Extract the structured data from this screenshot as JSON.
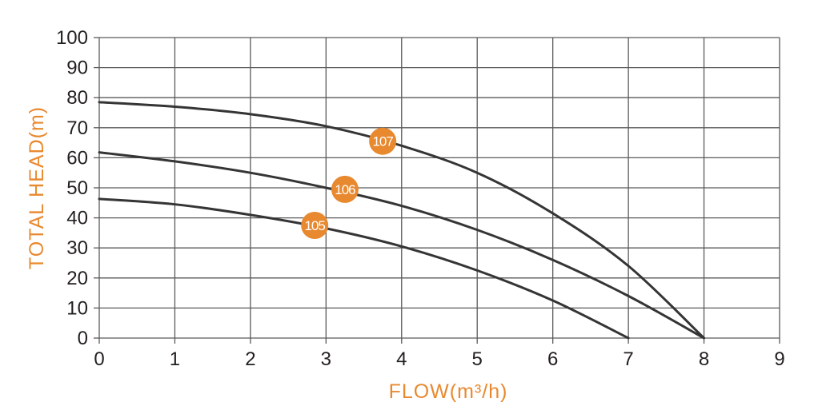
{
  "chart_data": {
    "type": "line",
    "xlabel": "FLOW(m³/h)",
    "ylabel": "TOTAL HEAD(m)",
    "xlim": [
      0,
      9
    ],
    "ylim": [
      0,
      100
    ],
    "x_ticks": [
      "0",
      "1",
      "2",
      "3",
      "4",
      "5",
      "6",
      "7",
      "8",
      "9"
    ],
    "y_ticks": [
      "0",
      "10",
      "20",
      "30",
      "40",
      "50",
      "60",
      "70",
      "80",
      "90",
      "100"
    ],
    "grid": true,
    "legend": "none",
    "series": [
      {
        "name": "107",
        "x": [
          0,
          1,
          2,
          3,
          4,
          5,
          6,
          7,
          8
        ],
        "values": [
          78.5,
          77,
          74.5,
          70.5,
          64,
          55,
          41.5,
          24,
          0
        ],
        "label_at": [
          3.75,
          65.5
        ]
      },
      {
        "name": "106",
        "x": [
          0,
          1,
          2,
          3,
          4,
          5,
          6,
          7,
          8
        ],
        "values": [
          61.8,
          58.8,
          55,
          50,
          44,
          36,
          26,
          14,
          0
        ],
        "label_at": [
          3.25,
          49.5
        ]
      },
      {
        "name": "105",
        "x": [
          0,
          1,
          2,
          3,
          4,
          5,
          6,
          7
        ],
        "values": [
          46.3,
          44.5,
          41,
          36.5,
          30.5,
          22.5,
          12.5,
          0
        ],
        "label_at": [
          2.85,
          37.5
        ]
      }
    ]
  },
  "colors": {
    "axis_title": "#e8892f",
    "grid": "#5a5a5a",
    "curve": "#353535",
    "label_bg": "#e8892f",
    "label_text": "#ffffff",
    "tick_text": "#231f20"
  }
}
